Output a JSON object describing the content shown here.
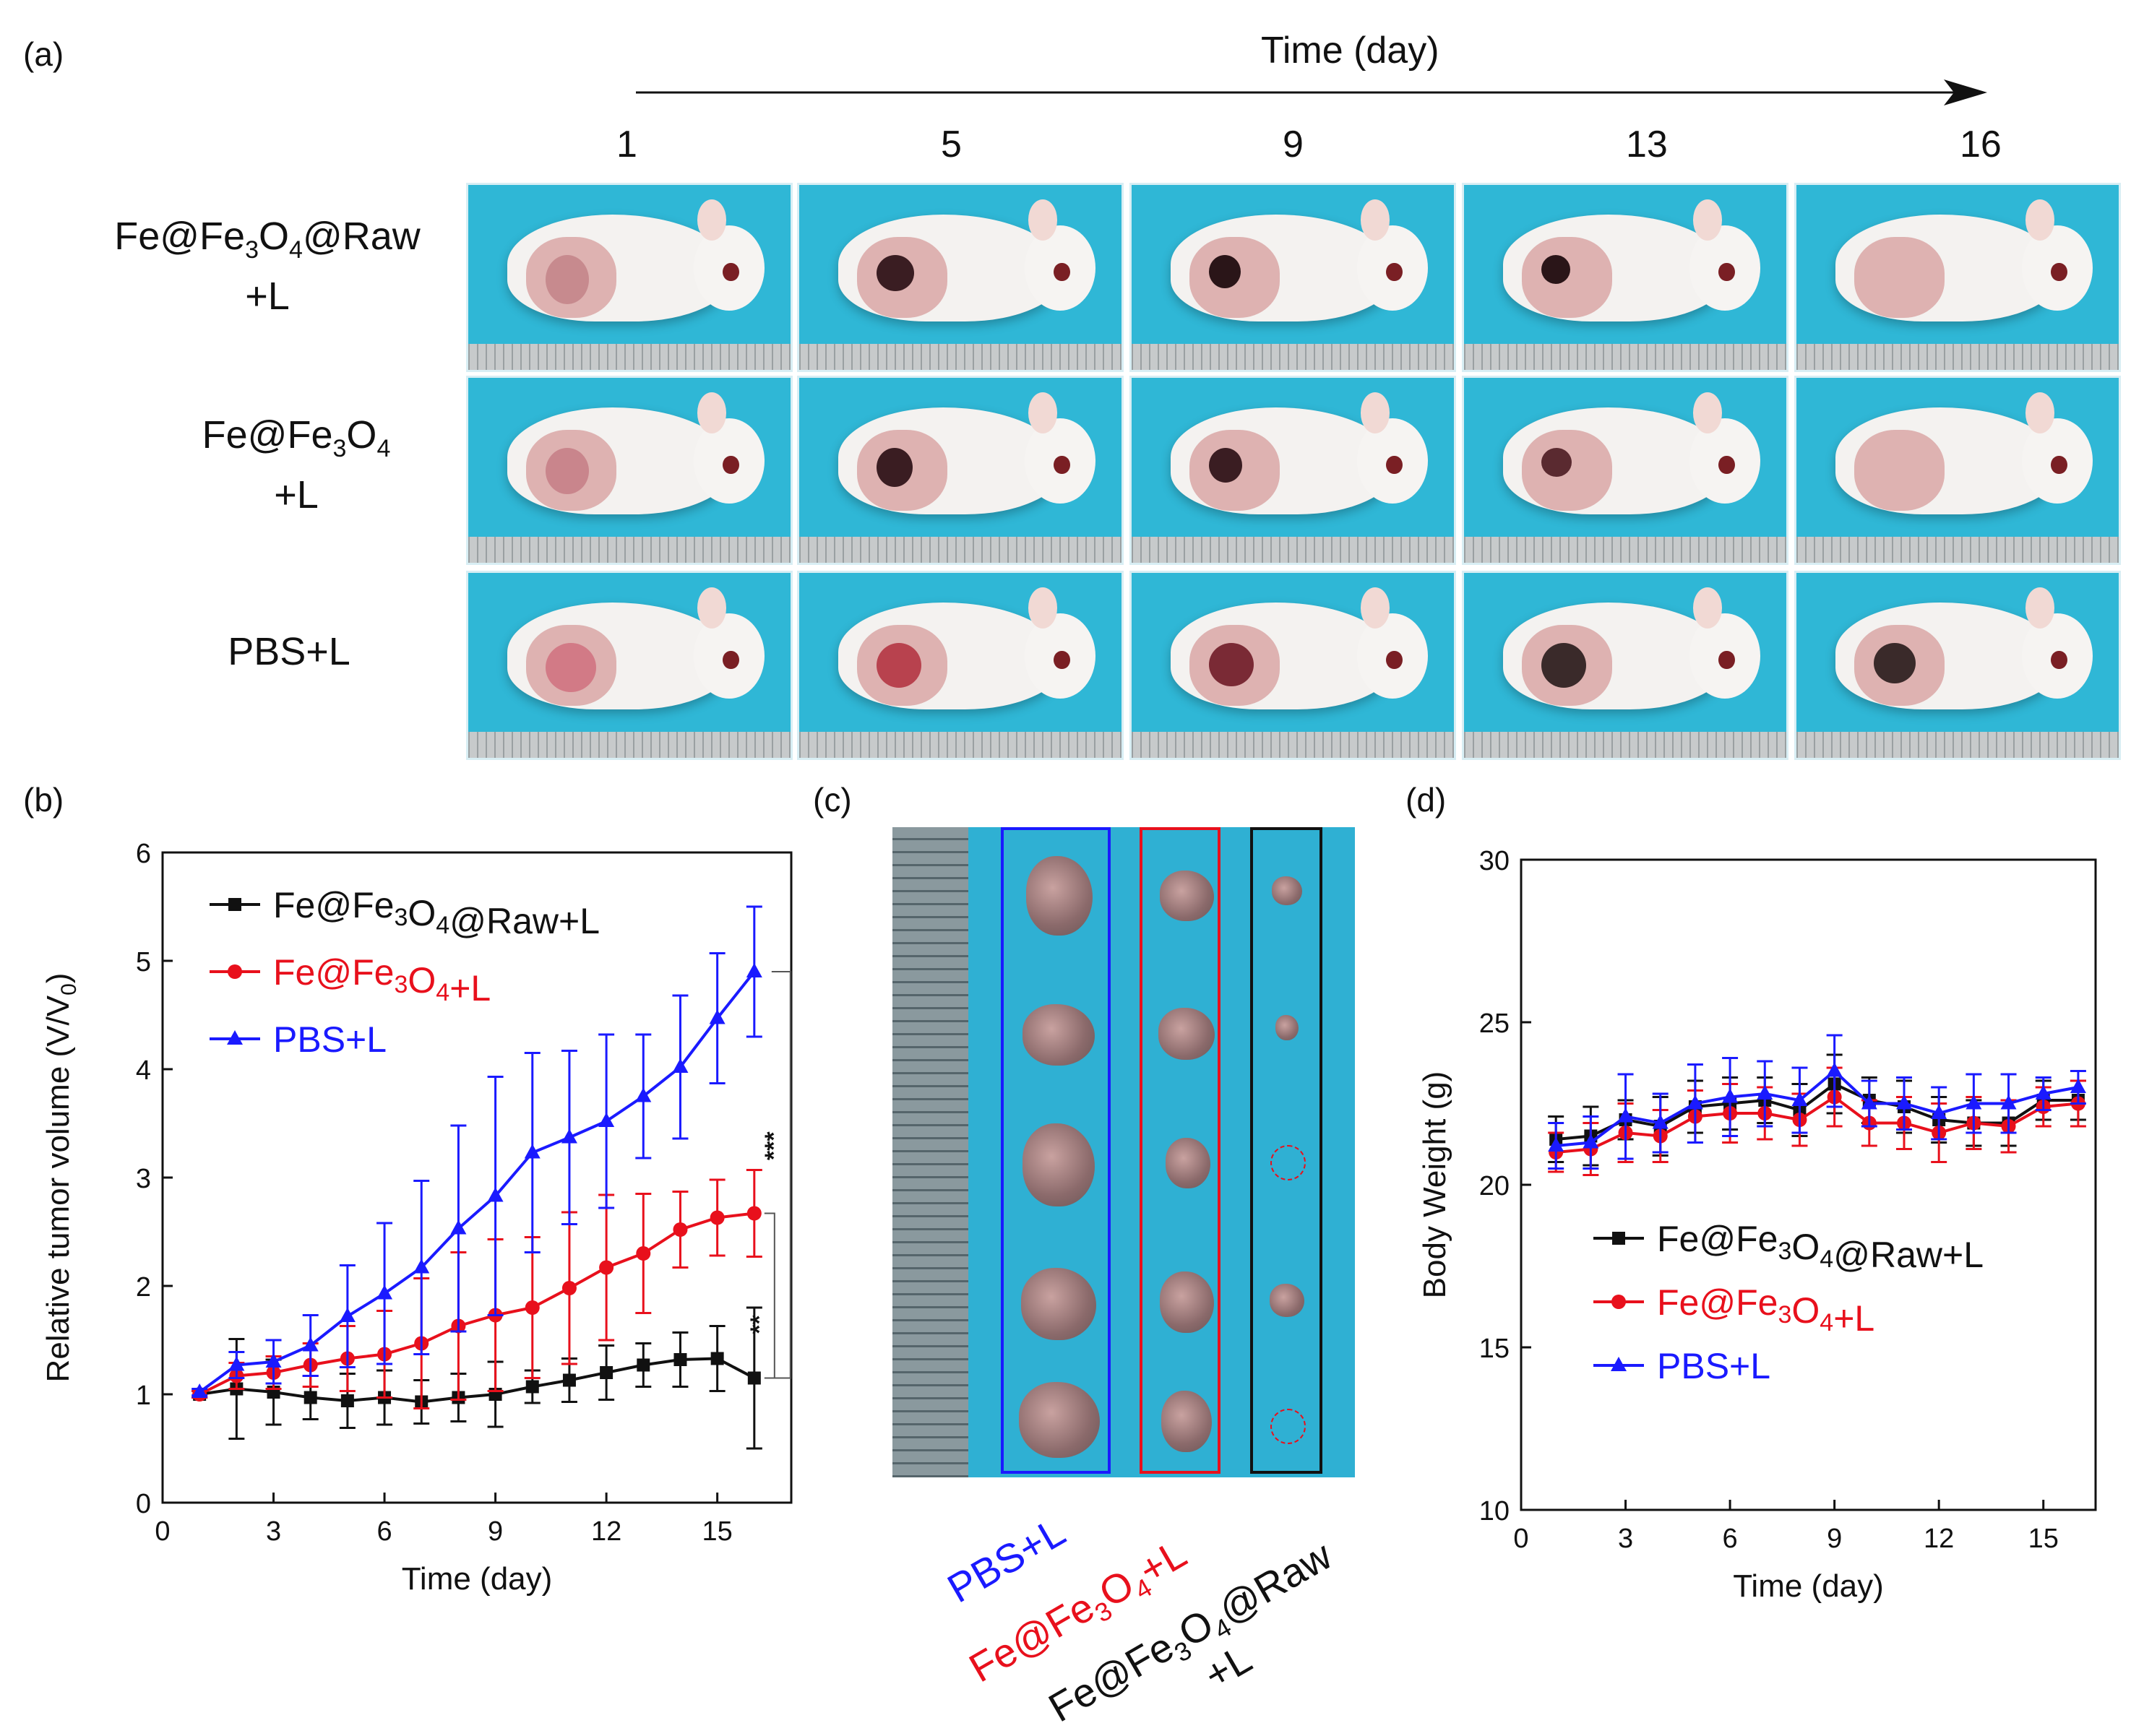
{
  "panel_a": {
    "label": "(a)",
    "time_axis_title": "Time (day)",
    "days": [
      "1",
      "5",
      "9",
      "13",
      "16"
    ],
    "rows": [
      {
        "line1": "Fe@Fe",
        "sub1": "3",
        "mid": "O",
        "sub2": "4",
        "tail": "@Raw",
        "line2": "+L"
      },
      {
        "line1": "Fe@Fe",
        "sub1": "3",
        "mid": "O",
        "sub2": "4",
        "tail": "",
        "line2": "+L"
      },
      {
        "line1": "PBS+L",
        "sub1": "",
        "mid": "",
        "sub2": "",
        "tail": "",
        "line2": ""
      }
    ]
  },
  "panel_c": {
    "label": "(c)",
    "labels": [
      {
        "pre": "PBS+L",
        "sub1": "",
        "mid": "",
        "sub2": "",
        "tail": "",
        "line2": "",
        "color": "#1a1aff"
      },
      {
        "pre": "Fe@Fe",
        "sub1": "3",
        "mid": "O",
        "sub2": "4",
        "tail": "+L",
        "line2": "",
        "color": "#e8101c"
      },
      {
        "pre": "Fe@Fe",
        "sub1": "3",
        "mid": "O",
        "sub2": "4",
        "tail": "@Raw",
        "line2": "+L",
        "color": "#111111"
      }
    ]
  },
  "chart_data": [
    {
      "type": "line",
      "panel_label": "(b)",
      "title": "",
      "xlabel": "Time (day)",
      "ylabel": "Relative tumor volume (V/V",
      "ylabel_sub": "0",
      "ylabel_tail": ")",
      "xlim": [
        0,
        17
      ],
      "ylim": [
        0,
        6
      ],
      "xticks": [
        0,
        3,
        6,
        9,
        12,
        15
      ],
      "yticks": [
        0,
        1,
        2,
        3,
        4,
        5,
        6
      ],
      "x": [
        1,
        2,
        3,
        4,
        5,
        6,
        7,
        8,
        9,
        10,
        11,
        12,
        13,
        14,
        15,
        16
      ],
      "series": [
        {
          "name": "Fe@Fe3O4@Raw+L",
          "legend": {
            "pre": "Fe@Fe",
            "sub1": "3",
            "mid": "O",
            "sub2": "4",
            "tail": "@Raw+L"
          },
          "color": "#111111",
          "marker": "square",
          "values": [
            1.0,
            1.05,
            1.02,
            0.97,
            0.94,
            0.97,
            0.93,
            0.97,
            1.0,
            1.07,
            1.13,
            1.2,
            1.27,
            1.32,
            1.33,
            1.15
          ],
          "errors": [
            0.03,
            0.46,
            0.3,
            0.2,
            0.25,
            0.25,
            0.2,
            0.22,
            0.3,
            0.15,
            0.2,
            0.25,
            0.2,
            0.25,
            0.3,
            0.65
          ]
        },
        {
          "name": "Fe@Fe3O4+L",
          "legend": {
            "pre": "Fe@Fe",
            "sub1": "3",
            "mid": "O",
            "sub2": "4",
            "tail": "+L"
          },
          "color": "#e8101c",
          "marker": "circle",
          "values": [
            1.0,
            1.17,
            1.2,
            1.27,
            1.33,
            1.37,
            1.47,
            1.63,
            1.73,
            1.8,
            1.98,
            2.17,
            2.3,
            2.52,
            2.63,
            2.67
          ],
          "errors": [
            0.03,
            0.12,
            0.15,
            0.2,
            0.3,
            0.4,
            0.6,
            0.68,
            0.7,
            0.65,
            0.7,
            0.67,
            0.55,
            0.35,
            0.35,
            0.4
          ]
        },
        {
          "name": "PBS+L",
          "legend": {
            "pre": "PBS+L",
            "sub1": "",
            "mid": "",
            "sub2": "",
            "tail": ""
          },
          "color": "#1a1aff",
          "marker": "triangle",
          "values": [
            1.02,
            1.27,
            1.3,
            1.45,
            1.72,
            1.93,
            2.17,
            2.53,
            2.83,
            3.23,
            3.37,
            3.52,
            3.75,
            4.02,
            4.47,
            4.9
          ],
          "errors": [
            0.03,
            0.12,
            0.2,
            0.28,
            0.47,
            0.65,
            0.8,
            0.95,
            1.1,
            0.92,
            0.8,
            0.8,
            0.57,
            0.66,
            0.6,
            0.6
          ]
        }
      ],
      "significance": [
        {
          "label": "***",
          "between": [
            "PBS+L",
            "Fe@Fe3O4@Raw+L"
          ]
        },
        {
          "label": "**",
          "between": [
            "Fe@Fe3O4+L",
            "Fe@Fe3O4@Raw+L"
          ]
        }
      ]
    },
    {
      "type": "line",
      "panel_label": "(d)",
      "title": "",
      "xlabel": "Time (day)",
      "ylabel": "Body Weight (g)",
      "xlim": [
        0,
        16.5
      ],
      "ylim": [
        10,
        30
      ],
      "xticks": [
        0,
        3,
        6,
        9,
        12,
        15
      ],
      "yticks": [
        10,
        15,
        20,
        25,
        30
      ],
      "x": [
        1,
        2,
        3,
        4,
        5,
        6,
        7,
        8,
        9,
        10,
        11,
        12,
        13,
        14,
        15,
        16
      ],
      "series": [
        {
          "name": "Fe@Fe3O4@Raw+L",
          "legend": {
            "pre": "Fe@Fe",
            "sub1": "3",
            "mid": "O",
            "sub2": "4",
            "tail": "@Raw+L"
          },
          "color": "#111111",
          "marker": "square",
          "values": [
            21.4,
            21.5,
            22.0,
            21.8,
            22.4,
            22.5,
            22.6,
            22.3,
            23.1,
            22.6,
            22.4,
            22.0,
            21.9,
            21.9,
            22.6,
            22.6
          ],
          "errors": [
            0.7,
            0.9,
            0.6,
            0.9,
            0.8,
            0.8,
            0.7,
            0.8,
            0.9,
            0.7,
            0.8,
            0.7,
            0.7,
            0.7,
            0.6,
            0.6
          ]
        },
        {
          "name": "Fe@Fe3O4+L",
          "legend": {
            "pre": "Fe@Fe",
            "sub1": "3",
            "mid": "O",
            "sub2": "4",
            "tail": "+L"
          },
          "color": "#e8101c",
          "marker": "circle",
          "values": [
            21.0,
            21.1,
            21.6,
            21.5,
            22.1,
            22.2,
            22.2,
            22.0,
            22.7,
            21.9,
            21.9,
            21.6,
            21.9,
            21.8,
            22.4,
            22.5
          ],
          "errors": [
            0.6,
            0.8,
            0.9,
            0.8,
            0.8,
            0.9,
            0.8,
            0.8,
            0.9,
            0.7,
            0.8,
            0.9,
            0.8,
            0.8,
            0.6,
            0.7
          ]
        },
        {
          "name": "PBS+L",
          "legend": {
            "pre": "PBS+L",
            "sub1": "",
            "mid": "",
            "sub2": "",
            "tail": ""
          },
          "color": "#1a1aff",
          "marker": "triangle",
          "values": [
            21.2,
            21.3,
            22.1,
            21.9,
            22.5,
            22.7,
            22.8,
            22.6,
            23.5,
            22.5,
            22.5,
            22.2,
            22.5,
            22.5,
            22.8,
            23.0
          ],
          "errors": [
            0.7,
            0.8,
            1.3,
            0.9,
            1.2,
            1.2,
            1.0,
            1.0,
            1.1,
            0.7,
            0.8,
            0.8,
            0.9,
            0.9,
            0.5,
            0.5
          ]
        }
      ]
    }
  ]
}
